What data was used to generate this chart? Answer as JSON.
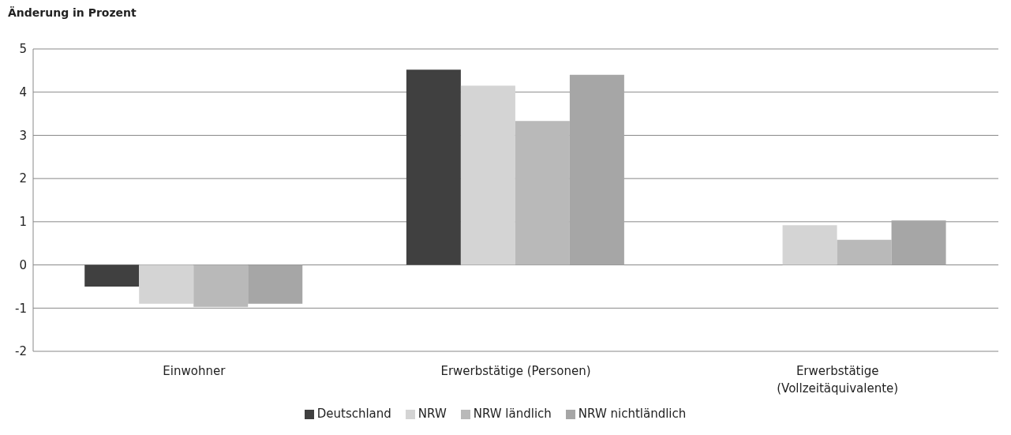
{
  "chart_data": {
    "type": "bar",
    "ylabel": "Änderung in Prozent",
    "categories": [
      "Einwohner",
      "Erwerbstätige (Personen)",
      "Erwerbstätige (Vollzeitäquivalente)"
    ],
    "series": [
      {
        "name": "Deutschland",
        "color": "#404040",
        "values": [
          -0.5,
          4.52,
          null
        ]
      },
      {
        "name": "NRW",
        "color": "#d4d4d4",
        "values": [
          -0.9,
          4.15,
          0.92
        ]
      },
      {
        "name": "NRW ländlich",
        "color": "#b9b9b9",
        "values": [
          -0.97,
          3.33,
          0.58
        ]
      },
      {
        "name": "NRW nichtländlich",
        "color": "#a6a6a6",
        "values": [
          -0.9,
          4.4,
          1.03
        ]
      }
    ],
    "ylim": [
      -2,
      5
    ],
    "yticks": [
      -2,
      -1,
      0,
      1,
      2,
      3,
      4,
      5
    ],
    "grid": "y",
    "legend": "bottom"
  }
}
